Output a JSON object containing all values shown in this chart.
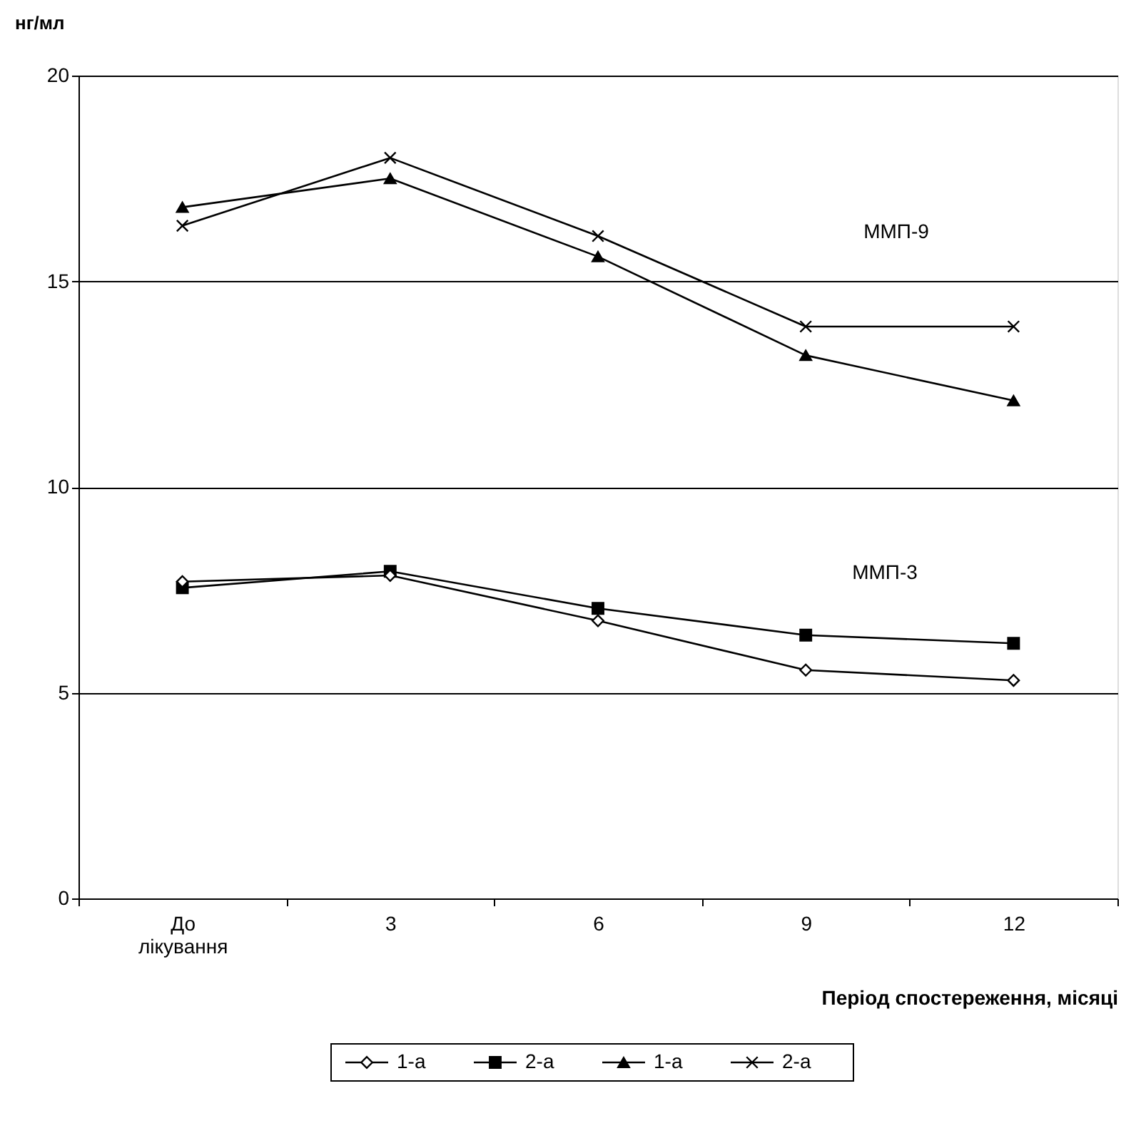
{
  "chart_data": {
    "type": "line",
    "ylabel": "нг/мл",
    "xlabel": "Період спостереження, місяці",
    "categories": [
      "До лікування",
      "3",
      "6",
      "9",
      "12"
    ],
    "ylim": [
      0,
      20
    ],
    "yticks": [
      0,
      5,
      10,
      15,
      20
    ],
    "grid": "y",
    "legend": "bottom",
    "annotations": [
      "ММП-9",
      "ММП-3"
    ],
    "series": [
      {
        "name": "1-а",
        "color": "#000000",
        "marker": "diamond",
        "values": [
          7.7,
          7.85,
          6.75,
          5.55,
          5.3
        ]
      },
      {
        "name": "2-а",
        "color": "#000000",
        "marker": "square",
        "values": [
          7.55,
          7.95,
          7.05,
          6.4,
          6.2
        ]
      },
      {
        "name": "1-а",
        "color": "#000000",
        "marker": "triangle",
        "values": [
          16.8,
          17.5,
          15.6,
          13.2,
          12.1
        ]
      },
      {
        "name": "2-а",
        "color": "#000000",
        "marker": "cross",
        "values": [
          16.35,
          18.0,
          16.1,
          13.9,
          13.9
        ]
      }
    ]
  }
}
